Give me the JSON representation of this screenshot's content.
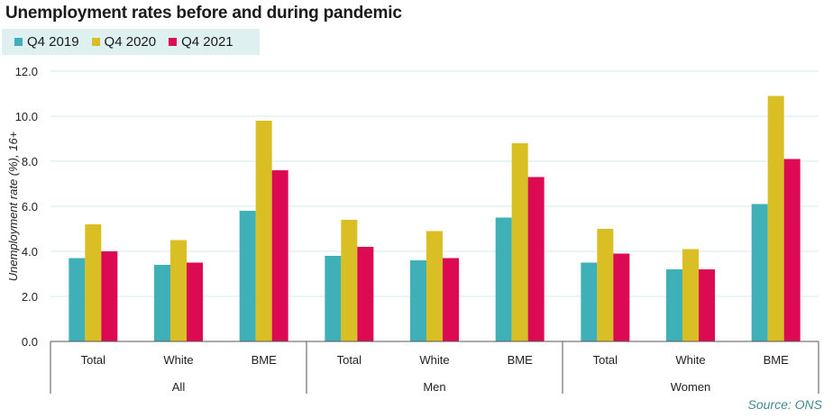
{
  "chart_data": {
    "type": "bar",
    "title": "Unemployment rates before and during pandemic",
    "ylabel": "Unemployment rate (%), 16+",
    "source": "Source: ONS",
    "ylim": [
      0,
      12
    ],
    "yticks": [
      "0.0",
      "2.0",
      "4.0",
      "6.0",
      "8.0",
      "10.0",
      "12.0"
    ],
    "grid": true,
    "legend_position": "top-left",
    "groups": [
      "All",
      "Men",
      "Women"
    ],
    "categories": [
      "Total",
      "White",
      "BME",
      "Total",
      "White",
      "BME",
      "Total",
      "White",
      "BME"
    ],
    "series": [
      {
        "name": "Q4 2019",
        "color": "#3fb0b8",
        "values": [
          3.7,
          3.4,
          5.8,
          3.8,
          3.6,
          5.5,
          3.5,
          3.2,
          6.1
        ]
      },
      {
        "name": "Q4 2020",
        "color": "#d9bf23",
        "values": [
          5.2,
          4.5,
          9.8,
          5.4,
          4.9,
          8.8,
          5.0,
          4.1,
          10.9
        ]
      },
      {
        "name": "Q4 2021",
        "color": "#dc0a52",
        "values": [
          4.0,
          3.5,
          7.6,
          4.2,
          3.7,
          7.3,
          3.9,
          3.2,
          8.1
        ]
      }
    ]
  }
}
